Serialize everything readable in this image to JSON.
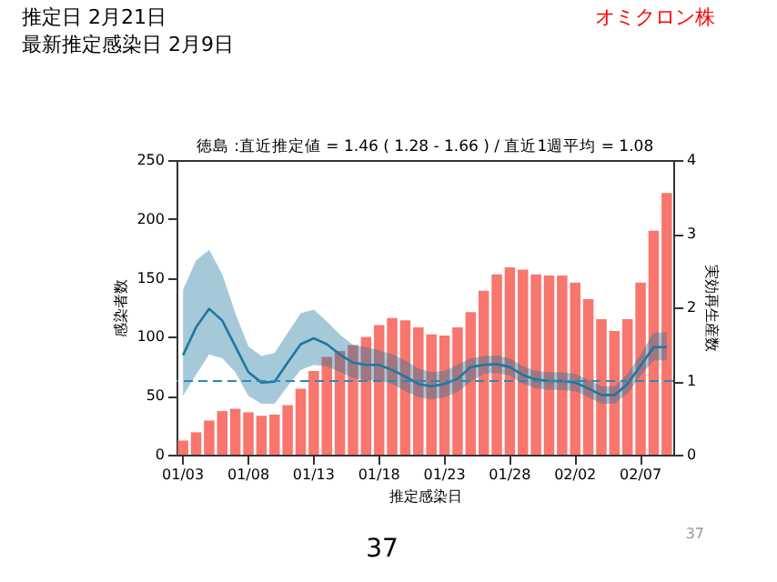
{
  "chart_data": {
    "type": "bar",
    "title": "徳島 :直近推定値 = 1.46 ( 1.28 - 1.66 ) / 直近1週平均 = 1.08",
    "xlabel": "推定感染日",
    "ylabel": "感染者数",
    "y2label": "実効再生産数",
    "annotations": [
      "推定日  2月21日",
      "最新推定感染日  2月9日",
      "オミクロン株",
      "37",
      "37"
    ],
    "categories": [
      "01/03",
      null,
      null,
      null,
      null,
      "01/08",
      null,
      null,
      null,
      null,
      "01/13",
      null,
      null,
      null,
      null,
      "01/18",
      null,
      null,
      null,
      null,
      "01/23",
      null,
      null,
      null,
      null,
      "01/28",
      null,
      null,
      null,
      null,
      "02/02",
      null,
      null,
      null,
      null,
      "02/07",
      null,
      null
    ],
    "series": [
      {
        "color": "#f8766d",
        "values": [
          12,
          19,
          29,
          37,
          39,
          36,
          33,
          34,
          42,
          56,
          71,
          83,
          88,
          93,
          100,
          110,
          116,
          114,
          108,
          102,
          101,
          108,
          121,
          139,
          153,
          159,
          157,
          153,
          152,
          152,
          146,
          132,
          115,
          105,
          115,
          146,
          190,
          222
        ]
      },
      {
        "type": "line",
        "axis": "y2",
        "color": "#1f77a0",
        "values": [
          1.35,
          1.73,
          1.98,
          1.82,
          1.47,
          1.12,
          0.98,
          0.99,
          1.25,
          1.5,
          1.58,
          1.5,
          1.36,
          1.25,
          1.22,
          1.22,
          1.15,
          1.06,
          0.96,
          0.93,
          0.96,
          1.03,
          1.19,
          1.22,
          1.23,
          1.19,
          1.08,
          1.02,
          1.0,
          1.0,
          0.98,
          0.9,
          0.81,
          0.81,
          0.96,
          1.21,
          1.46,
          1.46
        ],
        "upper": [
          2.24,
          2.64,
          2.78,
          2.45,
          1.92,
          1.47,
          1.34,
          1.38,
          1.65,
          1.92,
          1.97,
          1.81,
          1.63,
          1.49,
          1.46,
          1.42,
          1.36,
          1.28,
          1.17,
          1.12,
          1.14,
          1.22,
          1.31,
          1.34,
          1.35,
          1.31,
          1.2,
          1.14,
          1.12,
          1.12,
          1.1,
          1.02,
          0.93,
          0.93,
          1.1,
          1.36,
          1.66,
          1.66
        ],
        "lower": [
          0.8,
          1.09,
          1.36,
          1.31,
          1.12,
          0.8,
          0.69,
          0.69,
          0.93,
          1.15,
          1.22,
          1.2,
          1.12,
          1.04,
          1.01,
          1.01,
          0.96,
          0.86,
          0.78,
          0.75,
          0.78,
          0.85,
          0.99,
          1.1,
          1.11,
          1.07,
          0.96,
          0.9,
          0.88,
          0.88,
          0.86,
          0.78,
          0.69,
          0.69,
          0.83,
          1.07,
          1.28,
          1.28
        ]
      }
    ],
    "ylim": [
      0,
      250
    ],
    "yticks": [
      0,
      50,
      100,
      150,
      200,
      250
    ],
    "y2lim": [
      0,
      4
    ],
    "y2ticks": [
      0,
      1,
      2,
      3,
      4
    ],
    "ref_lines": [
      {
        "axis": "y2",
        "value": 1,
        "color": "#2a8ab8",
        "line_style": "dashed"
      }
    ],
    "grid": false
  }
}
